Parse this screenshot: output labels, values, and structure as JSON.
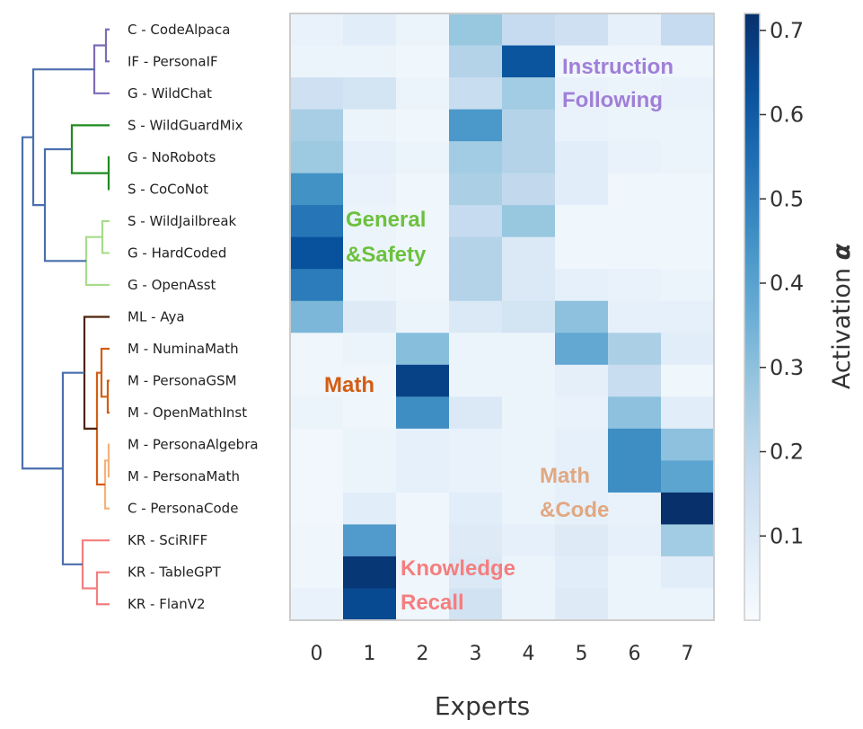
{
  "chart_data": {
    "type": "heatmap",
    "title": "",
    "xlabel": "Experts",
    "colorbar_label": "Activation",
    "colorbar_symbol": "α",
    "colorbar_ticks": [
      0.1,
      0.2,
      0.3,
      0.4,
      0.5,
      0.6,
      0.7
    ],
    "value_range": [
      0.0,
      0.72
    ],
    "colormap": "Blues",
    "x_categories": [
      "0",
      "1",
      "2",
      "3",
      "4",
      "5",
      "6",
      "7"
    ],
    "y_categories": [
      "C - CodeAlpaca",
      "IF - PersonaIF",
      "G - WildChat",
      "S - WildGuardMix",
      "G - NoRobots",
      "S - CoCoNot",
      "S - WildJailbreak",
      "G - HardCoded",
      "G - OpenAsst",
      "ML - Aya",
      "M - NuminaMath",
      "M - PersonaGSM",
      "M - OpenMathInst",
      "M - PersonaAlgebra",
      "M - PersonaMath",
      "C - PersonaCode",
      "KR - SciRIFF",
      "KR - TableGPT",
      "KR - FlanV2"
    ],
    "values": [
      [
        0.05,
        0.08,
        0.04,
        0.28,
        0.18,
        0.15,
        0.06,
        0.18
      ],
      [
        0.04,
        0.04,
        0.03,
        0.22,
        0.62,
        0.03,
        0.03,
        0.03
      ],
      [
        0.15,
        0.13,
        0.04,
        0.17,
        0.26,
        0.05,
        0.04,
        0.05
      ],
      [
        0.25,
        0.04,
        0.03,
        0.43,
        0.22,
        0.05,
        0.04,
        0.04
      ],
      [
        0.27,
        0.06,
        0.04,
        0.26,
        0.22,
        0.08,
        0.05,
        0.04
      ],
      [
        0.45,
        0.05,
        0.03,
        0.24,
        0.19,
        0.08,
        0.03,
        0.03
      ],
      [
        0.53,
        0.04,
        0.03,
        0.18,
        0.28,
        0.03,
        0.03,
        0.03
      ],
      [
        0.63,
        0.04,
        0.03,
        0.22,
        0.1,
        0.03,
        0.03,
        0.03
      ],
      [
        0.51,
        0.04,
        0.03,
        0.22,
        0.1,
        0.06,
        0.05,
        0.04
      ],
      [
        0.33,
        0.09,
        0.04,
        0.1,
        0.13,
        0.3,
        0.06,
        0.06
      ],
      [
        0.03,
        0.04,
        0.31,
        0.04,
        0.04,
        0.38,
        0.24,
        0.08
      ],
      [
        0.03,
        0.03,
        0.67,
        0.04,
        0.04,
        0.07,
        0.17,
        0.03
      ],
      [
        0.04,
        0.03,
        0.46,
        0.1,
        0.04,
        0.05,
        0.3,
        0.08
      ],
      [
        0.02,
        0.04,
        0.06,
        0.05,
        0.04,
        0.06,
        0.46,
        0.3
      ],
      [
        0.02,
        0.04,
        0.06,
        0.05,
        0.04,
        0.06,
        0.46,
        0.39
      ],
      [
        0.02,
        0.08,
        0.03,
        0.08,
        0.04,
        0.06,
        0.05,
        0.72
      ],
      [
        0.03,
        0.42,
        0.03,
        0.09,
        0.06,
        0.09,
        0.06,
        0.26
      ],
      [
        0.03,
        0.7,
        0.03,
        0.1,
        0.04,
        0.08,
        0.04,
        0.08
      ],
      [
        0.05,
        0.65,
        0.03,
        0.14,
        0.04,
        0.09,
        0.04,
        0.04
      ]
    ],
    "annotations": [
      {
        "text": "Instruction",
        "color": "#a07fd8"
      },
      {
        "text": "Following",
        "color": "#a07fd8"
      },
      {
        "text": "General",
        "color": "#6cc13e"
      },
      {
        "text": "&Safety",
        "color": "#6cc13e"
      },
      {
        "text": "Math",
        "color": "#d35d12"
      },
      {
        "text": "Math",
        "color": "#e0a882"
      },
      {
        "text": "&Code",
        "color": "#e0a882"
      },
      {
        "text": "Knowledge",
        "color": "#f47e7e"
      },
      {
        "text": "Recall",
        "color": "#f47e7e"
      }
    ],
    "dendrogram": {
      "cluster_colors": {
        "purple": "#7e6bb8",
        "green": "#1f8a1f",
        "light_green": "#a7dc8a",
        "dark_brown": "#4d2308",
        "orange": "#d35d12",
        "peach": "#f5b27a",
        "pink": "#f47e7e",
        "root": "#4a6fad"
      }
    }
  }
}
